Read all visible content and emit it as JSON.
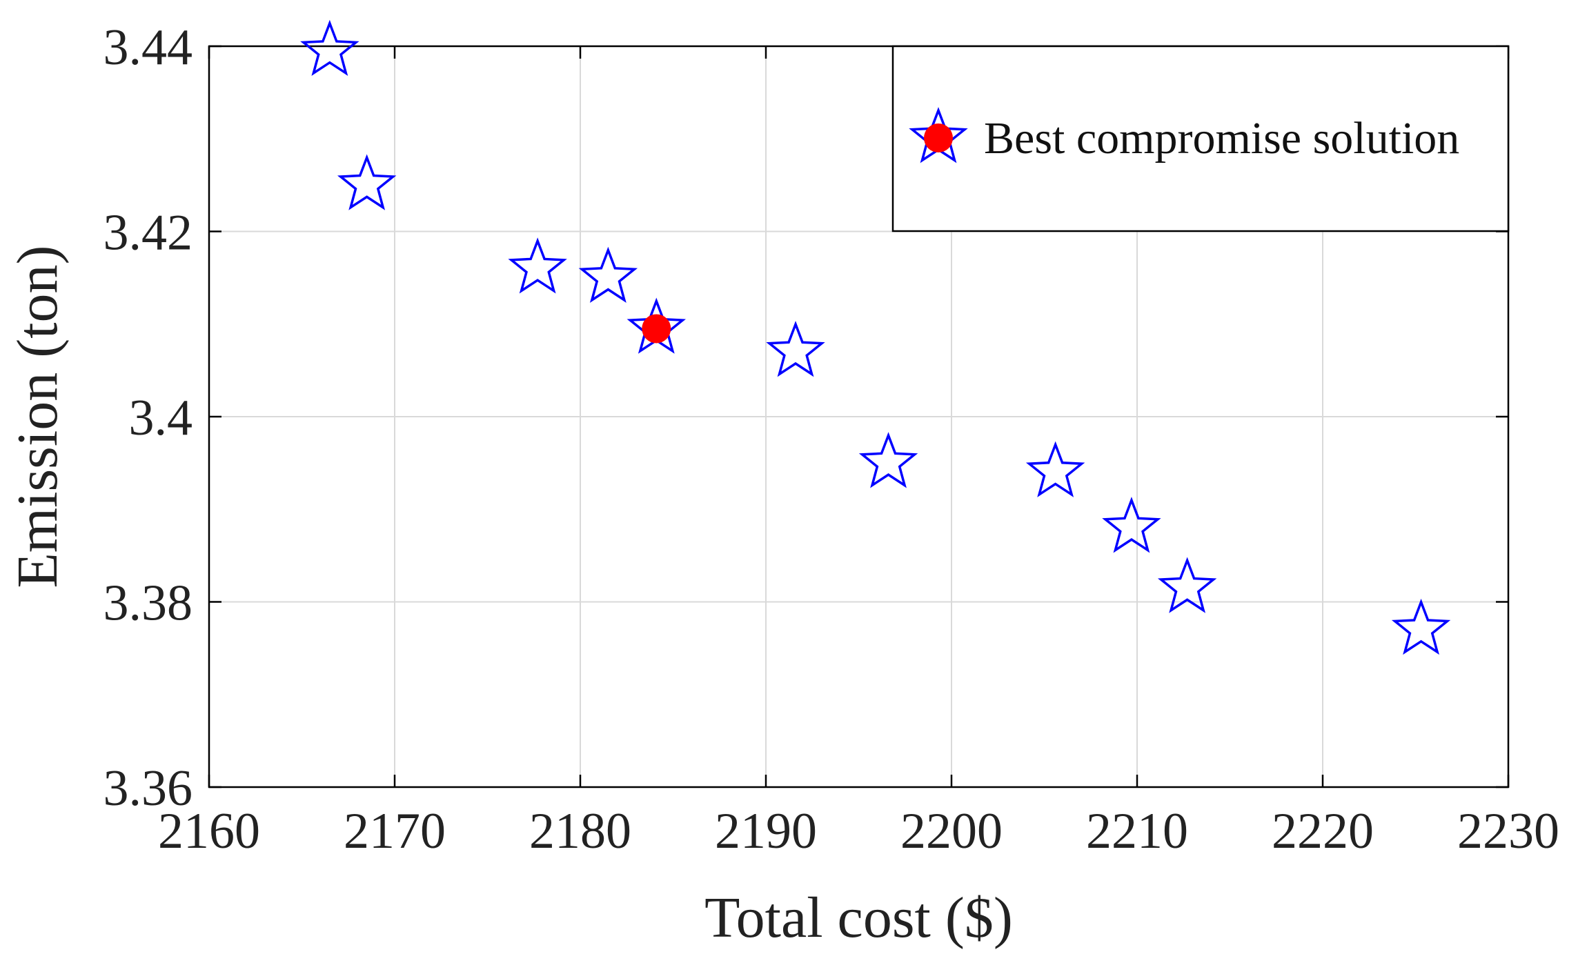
{
  "chart_data": {
    "type": "scatter",
    "xlabel": "Total cost ($)",
    "ylabel": "Emission (ton)",
    "xlim": [
      2160,
      2230
    ],
    "ylim": [
      3.36,
      3.44
    ],
    "xticks": [
      2160,
      2170,
      2180,
      2190,
      2200,
      2210,
      2220,
      2230
    ],
    "yticks": [
      3.36,
      3.38,
      3.4,
      3.42,
      3.44
    ],
    "xtick_labels": [
      "2160",
      "2170",
      "2180",
      "2190",
      "2200",
      "2210",
      "2220",
      "2230"
    ],
    "ytick_labels": [
      "3.36",
      "3.38",
      "3.4",
      "3.42",
      "3.44"
    ],
    "grid": true,
    "legend_position": "top-right",
    "series": [
      {
        "marker": "star",
        "color": "#0000ff",
        "x": [
          2166.5,
          2168.5,
          2177.7,
          2181.5,
          2184.1,
          2191.6,
          2196.6,
          2205.6,
          2209.7,
          2212.7,
          2225.3
        ],
        "y": [
          3.4395,
          3.425,
          3.416,
          3.415,
          3.4095,
          3.407,
          3.395,
          3.394,
          3.388,
          3.3815,
          3.377
        ]
      },
      {
        "name": "Best compromise solution",
        "marker": "circle",
        "color": "#ff0000",
        "x": [
          2184.1
        ],
        "y": [
          3.4095
        ]
      }
    ]
  }
}
